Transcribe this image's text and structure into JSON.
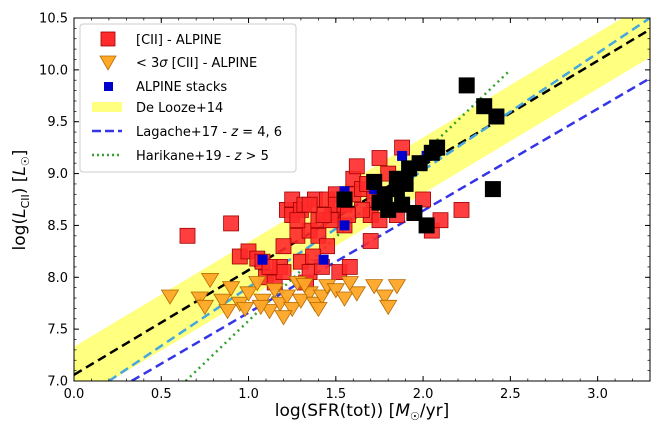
{
  "chart_data": {
    "type": "scatter",
    "xlabel": "log(SFR(tot)) [M⊙/yr]",
    "ylabel": "log(L_CII) [L⊙]",
    "xlim": [
      0.0,
      3.3
    ],
    "ylim": [
      7.0,
      10.5
    ],
    "xticks": [
      "0.0",
      "0.5",
      "1.0",
      "1.5",
      "2.0",
      "2.5",
      "3.0"
    ],
    "yticks": [
      "7.0",
      "7.5",
      "8.0",
      "8.5",
      "9.0",
      "9.5",
      "10.0",
      "10.5"
    ],
    "legend_position": "top-left",
    "legend": [
      {
        "label": "[CII] - ALPINE",
        "marker": "red-square-marker"
      },
      {
        "label": "< 3σ [CII] - ALPINE",
        "marker": "orange-down-triangle-marker"
      },
      {
        "label": "ALPINE stacks",
        "marker": "blue-square-marker"
      },
      {
        "label": "De Looze+14",
        "marker": "yellow-band-patch"
      },
      {
        "label": "Lagache+17 - z = 4, 6",
        "marker": "dashed-blue-line"
      },
      {
        "label": "Harikane+19 - z > 5",
        "marker": "dotted-green-line"
      }
    ],
    "colors": {
      "detections": "#ff2a2a",
      "upper_limits": "#ffa726",
      "stacks": "#0000cc",
      "black_points": "#000000",
      "de_looze_band": "#ffff80",
      "black_dashed": "#000000",
      "cyan_dashed": "#45a6e0",
      "lagache": "#3535e8",
      "harikane": "#33a02c"
    },
    "series": [
      {
        "name": "[CII] - ALPINE",
        "kind": "red-squares",
        "points": [
          [
            0.65,
            8.4
          ],
          [
            0.9,
            8.52
          ],
          [
            0.95,
            8.2
          ],
          [
            1.0,
            8.25
          ],
          [
            1.05,
            8.18
          ],
          [
            1.08,
            8.15
          ],
          [
            1.1,
            8.0
          ],
          [
            1.15,
            7.95
          ],
          [
            1.18,
            8.1
          ],
          [
            1.2,
            8.05
          ],
          [
            1.22,
            8.65
          ],
          [
            1.25,
            8.75
          ],
          [
            1.25,
            8.6
          ],
          [
            1.28,
            8.4
          ],
          [
            1.3,
            8.65
          ],
          [
            1.3,
            8.15
          ],
          [
            1.32,
            8.7
          ],
          [
            1.33,
            7.95
          ],
          [
            1.35,
            8.05
          ],
          [
            1.35,
            8.45
          ],
          [
            1.38,
            8.75
          ],
          [
            1.4,
            8.55
          ],
          [
            1.4,
            8.4
          ],
          [
            1.42,
            8.1
          ],
          [
            1.45,
            8.3
          ],
          [
            1.45,
            8.75
          ],
          [
            1.48,
            8.6
          ],
          [
            1.5,
            8.8
          ],
          [
            1.5,
            8.7
          ],
          [
            1.52,
            8.05
          ],
          [
            1.55,
            8.5
          ],
          [
            1.55,
            8.7
          ],
          [
            1.58,
            8.1
          ],
          [
            1.6,
            8.8
          ],
          [
            1.6,
            8.95
          ],
          [
            1.62,
            9.07
          ],
          [
            1.65,
            8.85
          ],
          [
            1.68,
            8.9
          ],
          [
            1.7,
            8.6
          ],
          [
            1.7,
            8.35
          ],
          [
            1.72,
            8.75
          ],
          [
            1.75,
            9.15
          ],
          [
            1.75,
            8.55
          ],
          [
            1.78,
            8.8
          ],
          [
            1.8,
            9.0
          ],
          [
            1.85,
            8.6
          ],
          [
            1.88,
            9.25
          ],
          [
            2.0,
            8.75
          ],
          [
            2.05,
            8.45
          ],
          [
            2.1,
            8.55
          ],
          [
            2.22,
            8.65
          ],
          [
            1.2,
            8.3
          ],
          [
            1.37,
            8.2
          ],
          [
            1.47,
            8.55
          ],
          [
            1.65,
            8.65
          ],
          [
            1.57,
            8.6
          ],
          [
            1.28,
            8.55
          ],
          [
            1.43,
            8.6
          ],
          [
            1.35,
            8.7
          ],
          [
            1.12,
            8.1
          ]
        ]
      },
      {
        "name": "< 3σ [CII] - ALPINE",
        "kind": "orange-triangles",
        "points": [
          [
            0.55,
            7.82
          ],
          [
            0.72,
            7.8
          ],
          [
            0.75,
            7.72
          ],
          [
            0.78,
            7.98
          ],
          [
            0.85,
            7.78
          ],
          [
            0.9,
            7.9
          ],
          [
            0.95,
            7.75
          ],
          [
            0.98,
            7.7
          ],
          [
            1.0,
            7.85
          ],
          [
            1.05,
            7.95
          ],
          [
            1.08,
            7.78
          ],
          [
            1.12,
            7.68
          ],
          [
            1.15,
            7.88
          ],
          [
            1.18,
            7.75
          ],
          [
            1.22,
            7.82
          ],
          [
            1.25,
            7.7
          ],
          [
            1.28,
            7.95
          ],
          [
            1.3,
            7.78
          ],
          [
            1.35,
            7.85
          ],
          [
            1.38,
            7.75
          ],
          [
            1.42,
            7.82
          ],
          [
            1.45,
            7.92
          ],
          [
            1.5,
            7.88
          ],
          [
            1.55,
            7.8
          ],
          [
            1.62,
            7.85
          ],
          [
            1.72,
            7.92
          ],
          [
            1.78,
            7.82
          ],
          [
            1.8,
            7.72
          ],
          [
            1.85,
            7.92
          ],
          [
            1.07,
            7.72
          ],
          [
            1.2,
            7.62
          ],
          [
            1.32,
            7.93
          ],
          [
            0.88,
            7.68
          ],
          [
            1.4,
            7.7
          ],
          [
            1.58,
            7.95
          ]
        ]
      },
      {
        "name": "ALPINE stacks",
        "kind": "blue-squares",
        "points": [
          [
            1.08,
            8.17
          ],
          [
            1.43,
            8.17
          ],
          [
            1.55,
            8.5
          ],
          [
            1.55,
            8.83
          ],
          [
            1.72,
            8.85
          ],
          [
            1.88,
            9.17
          ],
          [
            2.02,
            9.17
          ]
        ]
      },
      {
        "name": "",
        "kind": "black-squares",
        "points": [
          [
            1.55,
            8.75
          ],
          [
            1.72,
            8.92
          ],
          [
            1.78,
            8.8
          ],
          [
            1.8,
            8.65
          ],
          [
            1.85,
            8.85
          ],
          [
            1.88,
            8.7
          ],
          [
            1.9,
            8.9
          ],
          [
            1.92,
            9.05
          ],
          [
            1.95,
            8.62
          ],
          [
            1.98,
            9.1
          ],
          [
            2.02,
            8.5
          ],
          [
            2.05,
            9.2
          ],
          [
            2.08,
            9.25
          ],
          [
            2.25,
            9.85
          ],
          [
            2.35,
            9.65
          ],
          [
            2.4,
            8.85
          ],
          [
            2.42,
            9.55
          ],
          [
            1.75,
            8.72
          ],
          [
            1.85,
            8.95
          ]
        ]
      }
    ],
    "lines": [
      {
        "name": "De Looze+14",
        "kind": "band",
        "center": [
          [
            0.0,
            7.06
          ],
          [
            3.3,
            10.39
          ]
        ],
        "halfwidth": 0.27
      },
      {
        "name": "",
        "kind": "black-dashed",
        "points": [
          [
            0.0,
            7.06
          ],
          [
            3.3,
            10.39
          ]
        ]
      },
      {
        "name": "",
        "kind": "cyan-dashed",
        "points": [
          [
            0.2,
            7.0
          ],
          [
            3.3,
            10.5
          ]
        ]
      },
      {
        "name": "Lagache+17 - z = 4, 6",
        "kind": "blue-dashed",
        "points": [
          [
            0.33,
            7.0
          ],
          [
            3.3,
            9.92
          ]
        ]
      },
      {
        "name": "Harikane+19 - z > 5",
        "kind": "green-dotted",
        "points": [
          [
            0.64,
            7.0
          ],
          [
            2.5,
            10.0
          ]
        ]
      }
    ]
  }
}
